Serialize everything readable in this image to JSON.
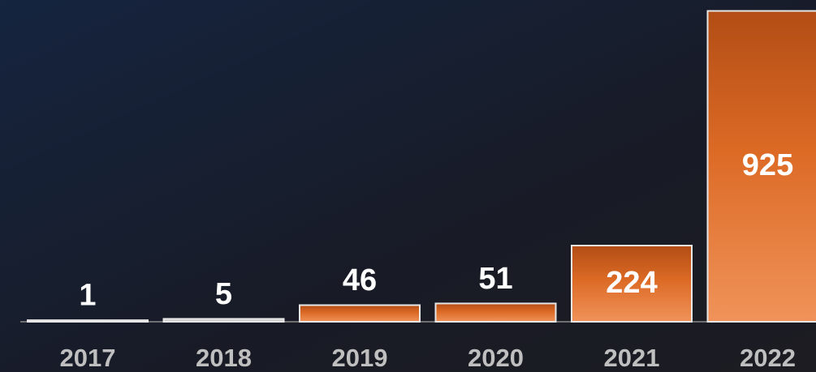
{
  "chart_data": {
    "type": "bar",
    "categories": [
      "2017",
      "2018",
      "2019",
      "2020",
      "2021",
      "2022"
    ],
    "values": [
      1,
      5,
      46,
      51,
      224,
      925
    ],
    "color": "#d8692a"
  }
}
